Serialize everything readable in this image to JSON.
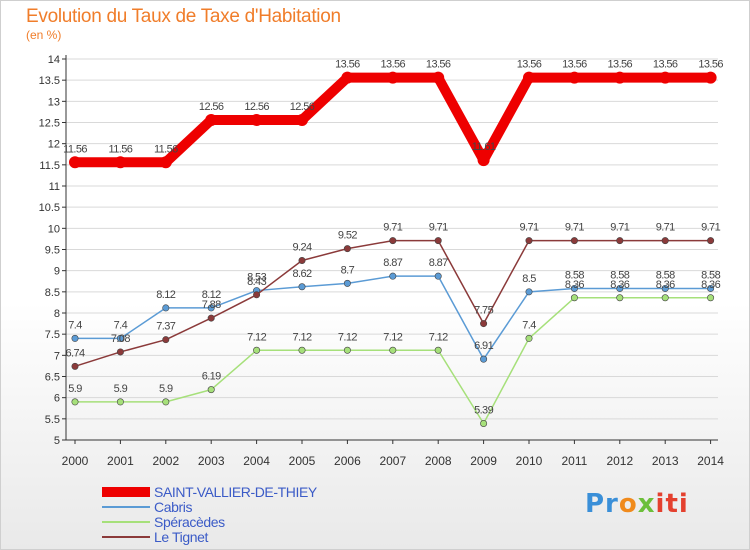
{
  "header": {
    "title": "Evolution du Taux de Taxe d'Habitation",
    "subtitle": "(en %)"
  },
  "logo": {
    "parts": [
      "Pr",
      "o",
      "x",
      "iti"
    ],
    "colors": [
      "#3a8fd8",
      "#f08a1c",
      "#6cbf3a",
      "#e4402e"
    ]
  },
  "chart_data": {
    "type": "line",
    "title": "Evolution du Taux de Taxe d'Habitation",
    "subtitle": "(en %)",
    "xlabel": "",
    "ylabel": "",
    "categories": [
      "2000",
      "2001",
      "2002",
      "2003",
      "2004",
      "2005",
      "2006",
      "2007",
      "2008",
      "2009",
      "2010",
      "2011",
      "2012",
      "2013",
      "2014"
    ],
    "ylim": [
      5,
      14
    ],
    "yticks": [
      "5",
      "5.5",
      "6",
      "6.5",
      "7",
      "7.5",
      "8",
      "8.5",
      "9",
      "9.5",
      "10",
      "10.5",
      "11",
      "11.5",
      "12",
      "12.5",
      "13",
      "13.5",
      "14"
    ],
    "grid": true,
    "legend": "bottom-left",
    "series": [
      {
        "name": "SAINT-VALLIER-DE-THIEY",
        "color": "#ee0000",
        "values": [
          11.56,
          11.56,
          11.56,
          12.56,
          12.56,
          12.56,
          13.56,
          13.56,
          13.56,
          11.61,
          13.56,
          13.56,
          13.56,
          13.56,
          13.56
        ],
        "labels": [
          "11.56",
          "11.56",
          "11.56",
          "12.56",
          "12.56",
          "12.56",
          "13.56",
          "13.56",
          "13.56",
          "11.61",
          "13.56",
          "13.56",
          "13.56",
          "13.56",
          "13.56"
        ]
      },
      {
        "name": "Cabris",
        "color": "#5b9bd5",
        "values": [
          7.4,
          7.4,
          8.12,
          8.12,
          8.53,
          8.62,
          8.7,
          8.87,
          8.87,
          6.91,
          8.5,
          8.58,
          8.58,
          8.58,
          8.58
        ],
        "labels": [
          "7.4",
          "7.4",
          "8.12",
          "8.12",
          "8.53",
          "8.62",
          "8.7",
          "8.87",
          "8.87",
          "6.91",
          "8.5",
          "8.58",
          "8.58",
          "8.58",
          "8.58"
        ]
      },
      {
        "name": "Spéracèdes",
        "color": "#a6e07a",
        "values": [
          5.9,
          5.9,
          5.9,
          6.19,
          7.12,
          7.12,
          7.12,
          7.12,
          7.12,
          5.39,
          7.4,
          8.36,
          8.36,
          8.36,
          8.36
        ],
        "labels": [
          "5.9",
          "5.9",
          "5.9",
          "6.19",
          "7.12",
          "7.12",
          "7.12",
          "7.12",
          "7.12",
          "5.39",
          "7.4",
          "8.36",
          "8.36",
          "8.36",
          "8.36"
        ]
      },
      {
        "name": "Le Tignet",
        "color": "#8b3a3a",
        "values": [
          6.74,
          7.08,
          7.37,
          7.88,
          8.43,
          9.24,
          9.52,
          9.71,
          9.71,
          7.75,
          9.71,
          9.71,
          9.71,
          9.71,
          9.71
        ],
        "labels": [
          "6.74",
          "7.08",
          "7.37",
          "7.88",
          "8.43",
          "9.24",
          "9.52",
          "9.71",
          "9.71",
          "7.75",
          "9.71",
          "9.71",
          "9.71",
          "9.71",
          "9.71"
        ]
      }
    ]
  }
}
